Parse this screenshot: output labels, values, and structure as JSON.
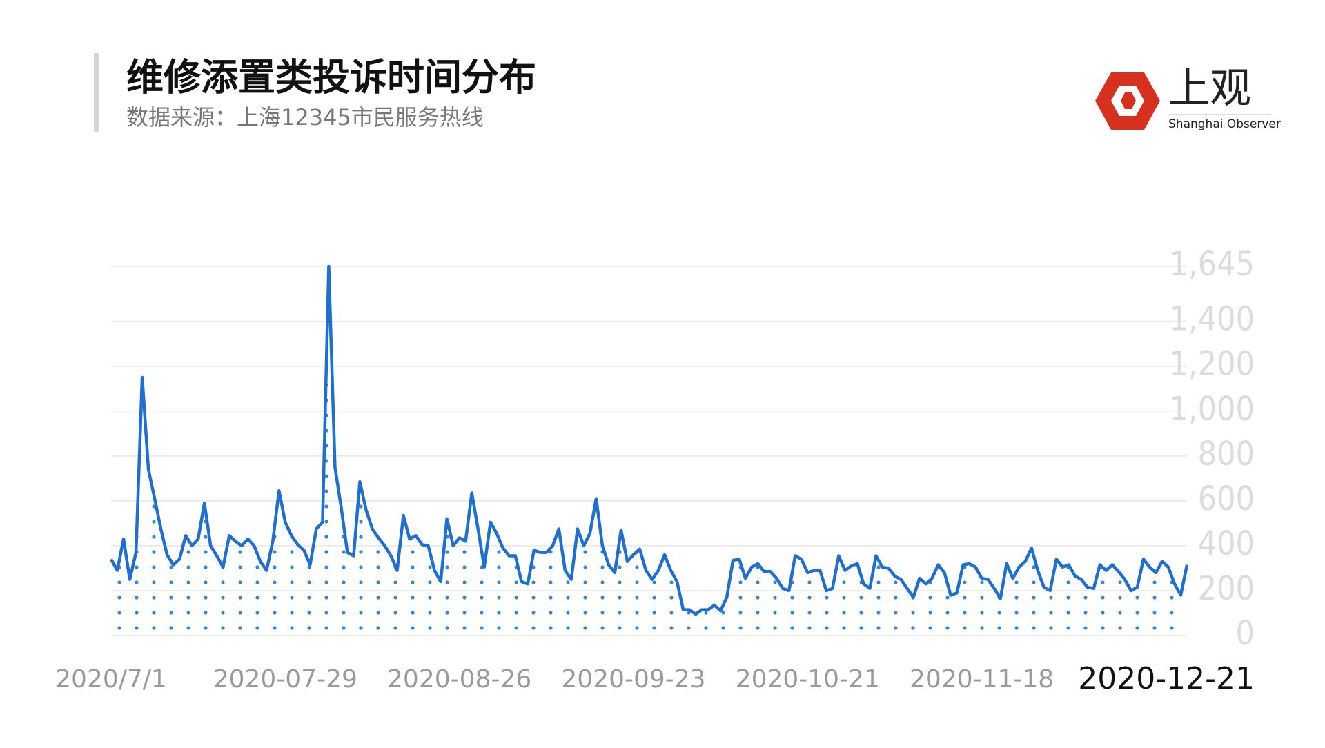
{
  "chart_data": {
    "type": "line",
    "title": "维修添置类投诉时间分布",
    "subtitle": "数据来源：上海12345市民服务热线",
    "categories": [
      "2020/7/1",
      null,
      null,
      null,
      null,
      null,
      null,
      null,
      null,
      null,
      null,
      null,
      null,
      null,
      null,
      null,
      null,
      null,
      null,
      null,
      null,
      null,
      null,
      null,
      null,
      null,
      null,
      null,
      "2020-07-29",
      null,
      null,
      null,
      null,
      null,
      null,
      null,
      null,
      null,
      null,
      null,
      null,
      null,
      null,
      null,
      null,
      null,
      null,
      null,
      null,
      null,
      null,
      null,
      null,
      null,
      null,
      null,
      "2020-08-26",
      null,
      null,
      null,
      null,
      null,
      null,
      null,
      null,
      null,
      null,
      null,
      null,
      null,
      null,
      null,
      null,
      null,
      null,
      null,
      null,
      null,
      null,
      null,
      null,
      null,
      null,
      null,
      "2020-09-23",
      null,
      null,
      null,
      null,
      null,
      null,
      null,
      null,
      null,
      null,
      null,
      null,
      null,
      null,
      null,
      null,
      null,
      null,
      null,
      null,
      null,
      null,
      null,
      null,
      null,
      null,
      null,
      "2020-10-21",
      null,
      null,
      null,
      null,
      null,
      null,
      null,
      null,
      null,
      null,
      null,
      null,
      null,
      null,
      null,
      null,
      null,
      null,
      null,
      null,
      null,
      null,
      null,
      null,
      null,
      null,
      null,
      "2020-11-18",
      null,
      null,
      null,
      null,
      null,
      null,
      null,
      null,
      null,
      null,
      null,
      null,
      null,
      null,
      null,
      null,
      null,
      null,
      null,
      null,
      null,
      null,
      null,
      null,
      null,
      null,
      null,
      null,
      null,
      null,
      null,
      null,
      "2020-12-21"
    ],
    "values": [
      340,
      290,
      430,
      250,
      370,
      1150,
      740,
      610,
      475,
      360,
      315,
      340,
      445,
      400,
      430,
      590,
      400,
      355,
      305,
      445,
      420,
      400,
      430,
      400,
      330,
      290,
      420,
      645,
      505,
      445,
      405,
      380,
      315,
      475,
      505,
      1645,
      750,
      570,
      370,
      355,
      685,
      560,
      475,
      435,
      400,
      355,
      290,
      535,
      430,
      445,
      405,
      400,
      290,
      240,
      520,
      400,
      435,
      420,
      635,
      475,
      305,
      505,
      455,
      390,
      355,
      355,
      240,
      230,
      380,
      370,
      370,
      400,
      475,
      290,
      250,
      475,
      400,
      455,
      610,
      400,
      315,
      280,
      470,
      330,
      360,
      385,
      290,
      250,
      290,
      360,
      290,
      240,
      115,
      115,
      95,
      115,
      115,
      135,
      110,
      170,
      335,
      340,
      255,
      305,
      320,
      285,
      285,
      255,
      210,
      200,
      355,
      340,
      280,
      290,
      290,
      200,
      210,
      355,
      290,
      310,
      320,
      230,
      210,
      355,
      305,
      300,
      265,
      250,
      210,
      170,
      255,
      230,
      255,
      315,
      280,
      180,
      190,
      315,
      320,
      305,
      255,
      250,
      210,
      165,
      320,
      255,
      305,
      330,
      390,
      290,
      215,
      200,
      340,
      305,
      315,
      265,
      250,
      215,
      210,
      315,
      290,
      315,
      285,
      250,
      200,
      215,
      340,
      305,
      280,
      330,
      305,
      230,
      180,
      315
    ],
    "color": "#1f6fd1",
    "ylim": [
      0,
      1645
    ],
    "yticks": [
      0,
      200,
      400,
      600,
      800,
      {
        "value": 1000,
        "label": "1,000"
      },
      {
        "value": 1200,
        "label": "1,200"
      },
      {
        "value": 1400,
        "label": "1,400"
      },
      {
        "value": 1645,
        "label": "1,645"
      }
    ],
    "grid": true
  },
  "logo": {
    "name": "上观",
    "subtitle": "Shanghai Observer"
  }
}
